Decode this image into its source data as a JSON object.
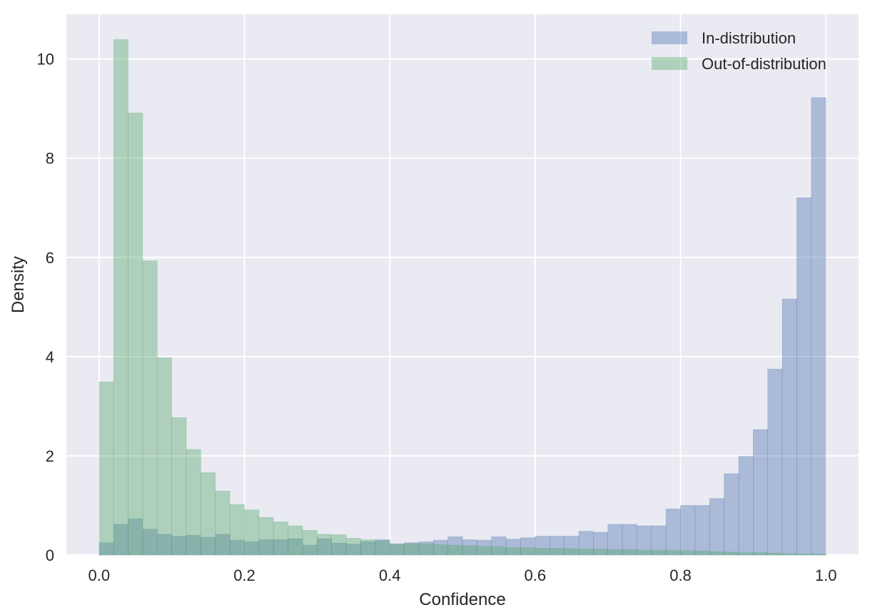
{
  "chart_data": {
    "type": "bar",
    "subtype": "overlaid-histogram",
    "xlabel": "Confidence",
    "ylabel": "Density",
    "xlim": [
      -0.045,
      1.045
    ],
    "ylim": [
      0,
      10.9
    ],
    "xticks": [
      0.0,
      0.2,
      0.4,
      0.6,
      0.8,
      1.0
    ],
    "xtick_labels": [
      "0.0",
      "0.2",
      "0.4",
      "0.6",
      "0.8",
      "1.0"
    ],
    "yticks": [
      0,
      2,
      4,
      6,
      8,
      10
    ],
    "ytick_labels": [
      "0",
      "2",
      "4",
      "6",
      "8",
      "10"
    ],
    "grid": true,
    "legend_position": "top-right",
    "bin_edges_range": [
      0.0,
      1.0
    ],
    "bin_count": 50,
    "series": [
      {
        "name": "In-distribution",
        "color": "#4c72b0",
        "values": [
          0.25,
          0.62,
          0.73,
          0.52,
          0.42,
          0.38,
          0.4,
          0.36,
          0.42,
          0.3,
          0.27,
          0.31,
          0.31,
          0.33,
          0.2,
          0.33,
          0.24,
          0.22,
          0.27,
          0.31,
          0.22,
          0.25,
          0.27,
          0.3,
          0.37,
          0.31,
          0.3,
          0.37,
          0.32,
          0.35,
          0.38,
          0.38,
          0.38,
          0.48,
          0.46,
          0.62,
          0.62,
          0.59,
          0.59,
          0.93,
          1.0,
          1.0,
          1.14,
          1.64,
          1.99,
          2.53,
          3.75,
          5.16,
          7.2,
          9.22
        ]
      },
      {
        "name": "Out-of-distribution",
        "color": "#55a868",
        "values": [
          3.49,
          10.39,
          8.91,
          5.93,
          3.98,
          2.77,
          2.13,
          1.66,
          1.29,
          1.02,
          0.91,
          0.76,
          0.67,
          0.59,
          0.5,
          0.42,
          0.41,
          0.34,
          0.31,
          0.29,
          0.23,
          0.23,
          0.23,
          0.21,
          0.2,
          0.19,
          0.18,
          0.17,
          0.15,
          0.15,
          0.14,
          0.14,
          0.13,
          0.12,
          0.12,
          0.11,
          0.11,
          0.1,
          0.1,
          0.09,
          0.09,
          0.08,
          0.07,
          0.06,
          0.05,
          0.05,
          0.04,
          0.03,
          0.02,
          0.02
        ]
      }
    ]
  }
}
